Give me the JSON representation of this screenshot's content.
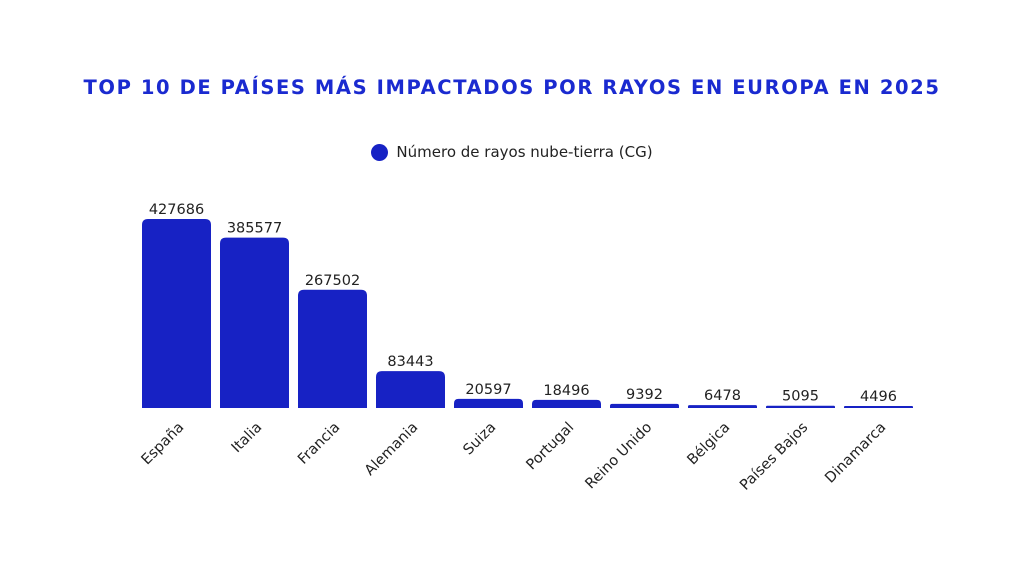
{
  "chart_data": {
    "type": "bar",
    "title": "TOP 10 DE PAÍSES MÁS IMPACTADOS POR RAYOS EN EUROPA EN 2025",
    "categories": [
      "España",
      "Italia",
      "Francia",
      "Alemania",
      "Suiza",
      "Portugal",
      "Reino Unido",
      "Bélgica",
      "Países Bajos",
      "Dinamarca"
    ],
    "series": [
      {
        "name": "Número de rayos nube-tierra (CG)",
        "values": [
          427686,
          385577,
          267502,
          83443,
          20597,
          18496,
          9392,
          6478,
          5095,
          4496
        ]
      }
    ],
    "xlabel": "",
    "ylabel": "",
    "ylim": [
      0,
      427686
    ],
    "grid": false,
    "legend": "top-center",
    "color": "#1722c4"
  }
}
